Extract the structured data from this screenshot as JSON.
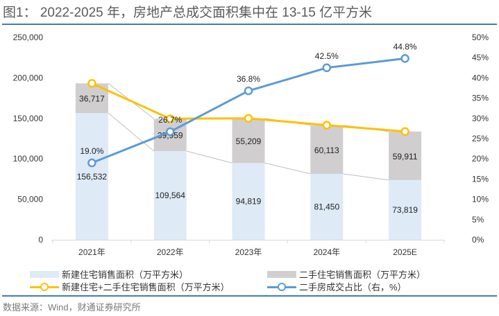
{
  "header": {
    "title": "图1： 2022-2025 年，房地产总成交面积集中在 13-15 亿平方米"
  },
  "footer": {
    "source": "数据来源：Wind，财通证券研究所"
  },
  "colors": {
    "new_home_bar": "#deeaf6",
    "second_hand_bar": "#d0cece",
    "total_line": "#ffc000",
    "share_line": "#5b9bd5",
    "connector": "#bfbfbf",
    "rule": "#3f7bbf"
  },
  "legend": {
    "items": [
      {
        "label": "新建住宅销售面积（万平方米）",
        "type": "box",
        "series": "new_home"
      },
      {
        "label": "二手住宅销售面积（万平方米）",
        "type": "box",
        "series": "second_hand"
      },
      {
        "label": "新建住宅+二手住宅销售面积（万平方米）",
        "type": "line",
        "series": "total"
      },
      {
        "label": "二手房成交占比（右，%）",
        "type": "line",
        "series": "share"
      }
    ]
  },
  "chart_data": {
    "type": "bar",
    "title": "2022-2025 年，房地产总成交面积集中在 13-15 亿平方米",
    "categories": [
      "2021年",
      "2022年",
      "2023年",
      "2024年",
      "2025E"
    ],
    "series": [
      {
        "name": "新建住宅销售面积（万平方米）",
        "kind": "stacked-bar",
        "axis": "left",
        "values": [
          156532,
          109564,
          94819,
          81450,
          73819
        ],
        "labels": [
          "156,532",
          "109,564",
          "94,819",
          "81,450",
          "73,819"
        ]
      },
      {
        "name": "二手住宅销售面积（万平方米）",
        "kind": "stacked-bar",
        "axis": "left",
        "values": [
          36717,
          39959,
          55209,
          60113,
          59911
        ],
        "labels": [
          "36,717",
          "39,959",
          "55,209",
          "60,113",
          "59,911"
        ]
      },
      {
        "name": "新建住宅+二手住宅销售面积（万平方米）",
        "kind": "line",
        "axis": "left",
        "values": [
          193249,
          149523,
          150028,
          141563,
          133730
        ]
      },
      {
        "name": "二手房成交占比（右，%）",
        "kind": "line",
        "axis": "right",
        "values": [
          19.0,
          26.7,
          36.8,
          42.5,
          44.8
        ],
        "labels": [
          "19.0%",
          "26.7%",
          "36.8%",
          "42.5%",
          "44.8%"
        ]
      }
    ],
    "y_left": {
      "min": 0,
      "max": 250000,
      "step": 50000,
      "ticks": [
        "0",
        "50,000",
        "100,000",
        "150,000",
        "200,000",
        "250,000"
      ]
    },
    "y_right": {
      "min": 0,
      "max": 50,
      "step": 5,
      "ticks": [
        "0%",
        "5%",
        "10%",
        "15%",
        "20%",
        "25%",
        "30%",
        "35%",
        "40%",
        "45%",
        "50%"
      ]
    },
    "xlabel": "",
    "ylabel": "",
    "grid": false,
    "legend_position": "bottom"
  }
}
